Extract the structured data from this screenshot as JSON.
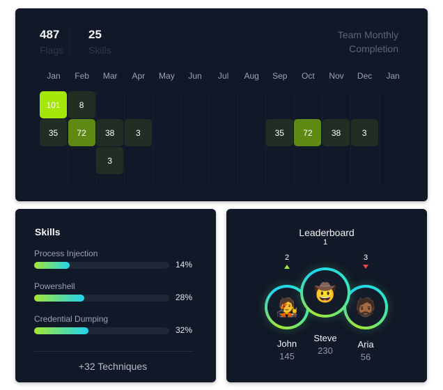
{
  "stats": [
    {
      "value": "487",
      "label": "Flags"
    },
    {
      "value": "25",
      "label": "Skills"
    }
  ],
  "chart_title_line1": "Team Monthly",
  "chart_title_line2": "Completion",
  "chart_data": {
    "type": "heatmap",
    "title": "Team Monthly Completion",
    "months": [
      "Jan",
      "Feb",
      "Mar",
      "Apr",
      "May",
      "Jun",
      "Jul",
      "Aug",
      "Sep",
      "Oct",
      "Nov",
      "Dec",
      "Jan"
    ],
    "cells": [
      {
        "month_index": 0,
        "row": 0,
        "value": 101
      },
      {
        "month_index": 1,
        "row": 0,
        "value": 8
      },
      {
        "month_index": 0,
        "row": 1,
        "value": 35
      },
      {
        "month_index": 1,
        "row": 1,
        "value": 72
      },
      {
        "month_index": 2,
        "row": 1,
        "value": 38
      },
      {
        "month_index": 3,
        "row": 1,
        "value": 3
      },
      {
        "month_index": 8,
        "row": 1,
        "value": 35
      },
      {
        "month_index": 9,
        "row": 1,
        "value": 72
      },
      {
        "month_index": 10,
        "row": 1,
        "value": 38
      },
      {
        "month_index": 11,
        "row": 1,
        "value": 3
      },
      {
        "month_index": 2,
        "row": 2,
        "value": 3
      }
    ],
    "colors": {
      "high": "#a3e607",
      "mid": "#5e8a13",
      "low": "#212e23"
    }
  },
  "skills": {
    "title": "Skills",
    "items": [
      {
        "name": "Process Injection",
        "percent": 14,
        "label": "14%"
      },
      {
        "name": "Powershell",
        "percent": 28,
        "label": "28%"
      },
      {
        "name": "Credential Dumping",
        "percent": 32,
        "label": "32%"
      }
    ],
    "more": "+32 Techniques"
  },
  "leaderboard": {
    "title": "Leaderboard",
    "players": [
      {
        "rank": "2",
        "name": "John",
        "score": "145",
        "trend": "up",
        "avatar": "🧑‍🎤"
      },
      {
        "rank": "1",
        "name": "Steve",
        "score": "230",
        "trend": "none",
        "avatar": "🤠"
      },
      {
        "rank": "3",
        "name": "Aria",
        "score": "56",
        "trend": "down",
        "avatar": "🧔🏾"
      }
    ]
  }
}
